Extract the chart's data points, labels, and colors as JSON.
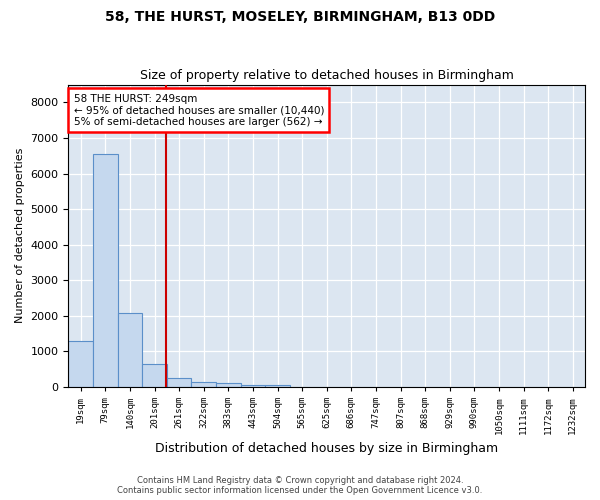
{
  "title": "58, THE HURST, MOSELEY, BIRMINGHAM, B13 0DD",
  "subtitle": "Size of property relative to detached houses in Birmingham",
  "xlabel": "Distribution of detached houses by size in Birmingham",
  "ylabel": "Number of detached properties",
  "bar_values": [
    1300,
    6550,
    2080,
    650,
    260,
    140,
    100,
    60,
    50,
    0,
    0,
    0,
    0,
    0,
    0,
    0,
    0,
    0,
    0,
    0,
    0
  ],
  "categories": [
    "19sqm",
    "79sqm",
    "140sqm",
    "201sqm",
    "261sqm",
    "322sqm",
    "383sqm",
    "443sqm",
    "504sqm",
    "565sqm",
    "625sqm",
    "686sqm",
    "747sqm",
    "807sqm",
    "868sqm",
    "929sqm",
    "990sqm",
    "1050sqm",
    "1111sqm",
    "1172sqm",
    "1232sqm"
  ],
  "bar_color": "#c5d8ee",
  "bar_edge_color": "#5b8fc9",
  "background_color": "#dce6f1",
  "vline_x": 3.48,
  "vline_color": "#cc0000",
  "annotation_box_text": "58 THE HURST: 249sqm\n← 95% of detached houses are smaller (10,440)\n5% of semi-detached houses are larger (562) →",
  "ylim": [
    0,
    8500
  ],
  "yticks": [
    0,
    1000,
    2000,
    3000,
    4000,
    5000,
    6000,
    7000,
    8000
  ],
  "footer1": "Contains HM Land Registry data © Crown copyright and database right 2024.",
  "footer2": "Contains public sector information licensed under the Open Government Licence v3.0."
}
